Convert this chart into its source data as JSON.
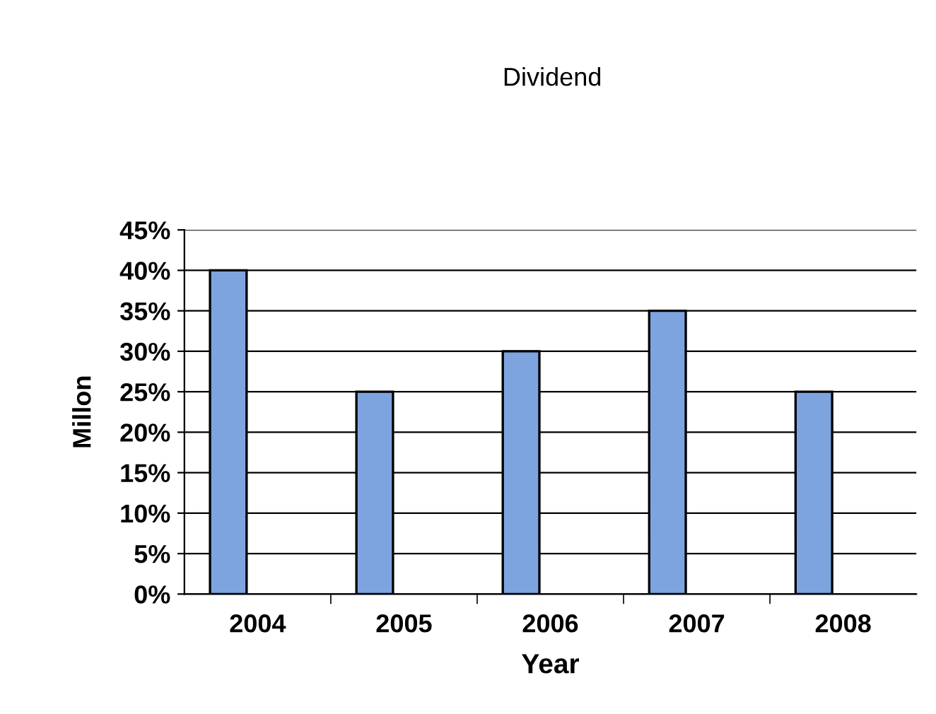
{
  "chart_data": {
    "type": "bar",
    "title": "Dividend",
    "xlabel": "Year",
    "ylabel": "Millon",
    "categories": [
      "2004",
      "2005",
      "2006",
      "2007",
      "2008"
    ],
    "values": [
      40,
      25,
      30,
      35,
      25
    ],
    "color": "#7ea4e0",
    "ylim": [
      0,
      45
    ],
    "yticks": [
      {
        "value": 0,
        "label": "0%"
      },
      {
        "value": 5,
        "label": "5%"
      },
      {
        "value": 10,
        "label": "10%"
      },
      {
        "value": 15,
        "label": "15%"
      },
      {
        "value": 20,
        "label": "20%"
      },
      {
        "value": 25,
        "label": "25%"
      },
      {
        "value": 30,
        "label": "30%"
      },
      {
        "value": 35,
        "label": "35%"
      },
      {
        "value": 40,
        "label": "40%"
      },
      {
        "value": 45,
        "label": "45%"
      }
    ],
    "grid": "y",
    "legend": false
  }
}
